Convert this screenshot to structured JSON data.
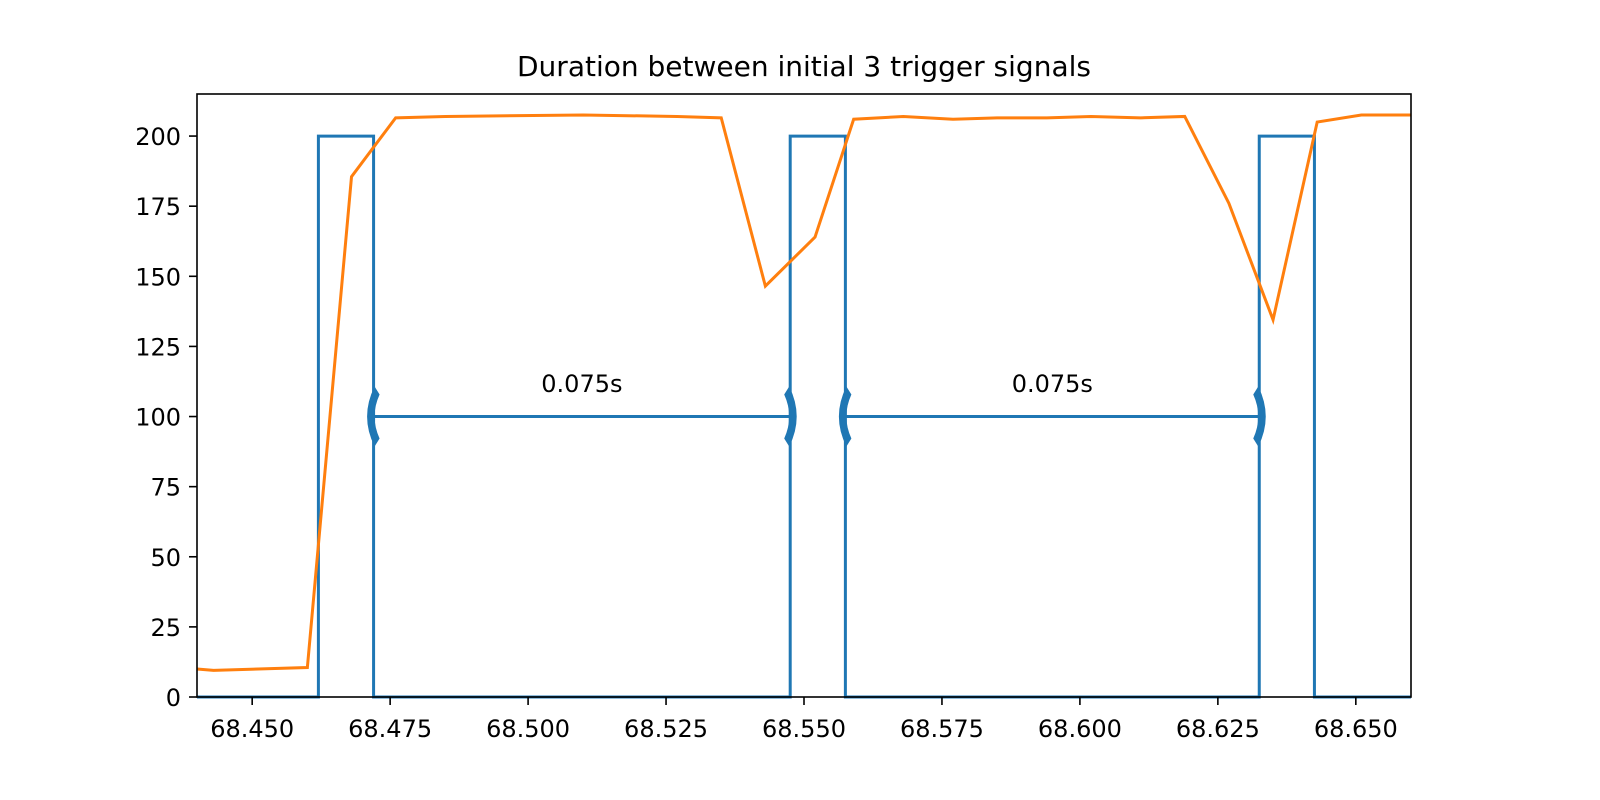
{
  "chart_data": {
    "type": "line",
    "title": "Duration between initial 3 trigger signals",
    "xlabel": "",
    "ylabel": "",
    "xlim": [
      68.44,
      68.66
    ],
    "ylim": [
      0,
      215
    ],
    "grid": false,
    "x_ticks": [
      68.45,
      68.475,
      68.5,
      68.525,
      68.55,
      68.575,
      68.6,
      68.625,
      68.65
    ],
    "x_tick_labels": [
      "68.450",
      "68.475",
      "68.500",
      "68.525",
      "68.550",
      "68.575",
      "68.600",
      "68.625",
      "68.650"
    ],
    "y_ticks": [
      0,
      25,
      50,
      75,
      100,
      125,
      150,
      175,
      200
    ],
    "y_tick_labels": [
      "0",
      "25",
      "50",
      "75",
      "100",
      "125",
      "150",
      "175",
      "200"
    ],
    "series": [
      {
        "color": "#1f77b4",
        "x": [
          68.44,
          68.462,
          68.462,
          68.472,
          68.472,
          68.5475,
          68.5475,
          68.5575,
          68.5575,
          68.6325,
          68.6325,
          68.6425,
          68.6425,
          68.66
        ],
        "y": [
          0,
          0,
          200,
          200,
          0,
          0,
          200,
          200,
          0,
          0,
          200,
          200,
          0,
          0
        ]
      },
      {
        "color": "#ff7f0e",
        "x": [
          68.44,
          68.443,
          68.46,
          68.468,
          68.476,
          68.485,
          68.51,
          68.527,
          68.535,
          68.543,
          68.552,
          68.559,
          68.568,
          68.577,
          68.585,
          68.594,
          68.602,
          68.611,
          68.619,
          68.627,
          68.635,
          68.643,
          68.651,
          68.66
        ],
        "y": [
          10,
          9.5,
          10.5,
          185.5,
          206.5,
          207,
          207.5,
          207,
          206.5,
          146.5,
          164,
          206,
          207,
          206,
          206.5,
          206.5,
          207,
          206.5,
          207,
          176,
          134.5,
          205,
          207.5,
          207.5
        ]
      }
    ],
    "annotations": [
      {
        "text": "0.075s",
        "x_start": 68.472,
        "x_end": 68.5475,
        "y": 100,
        "label_y": 112,
        "color": "#1f77b4"
      },
      {
        "text": "0.075s",
        "x_start": 68.5575,
        "x_end": 68.6325,
        "y": 100,
        "label_y": 112,
        "color": "#1f77b4"
      }
    ]
  }
}
